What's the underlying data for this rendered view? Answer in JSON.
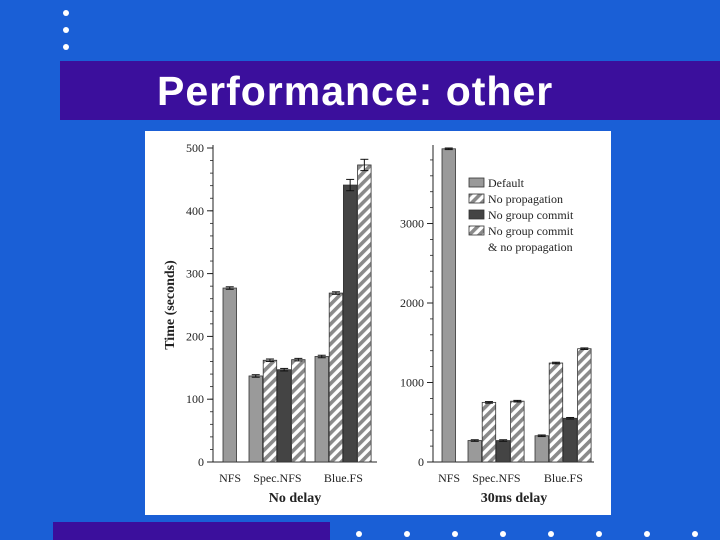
{
  "slide": {
    "title": "Performance: other",
    "colors": {
      "background": "#1a5fd6",
      "title_bar": "#3b0f9c",
      "title_text": "#ffffff"
    }
  },
  "chart_data": [
    {
      "type": "bar",
      "xlabel": "No delay",
      "ylabel": "Time (seconds)",
      "ylim": [
        0,
        500
      ],
      "yticks": [
        0,
        100,
        200,
        300,
        400,
        500
      ],
      "groups": [
        {
          "label": "NFS",
          "values": [
            277
          ]
        },
        {
          "label": "Spec.NFS",
          "values": [
            137,
            162,
            147,
            163
          ]
        },
        {
          "label": "Blue.FS",
          "values": [
            168,
            269,
            441,
            473
          ]
        }
      ],
      "error_bars": true
    },
    {
      "type": "bar",
      "xlabel": "30ms delay",
      "ylabel": "",
      "ylim": [
        0,
        3950
      ],
      "yticks": [
        0,
        1000,
        2000,
        3000
      ],
      "groups": [
        {
          "label": "NFS",
          "values": [
            3940
          ]
        },
        {
          "label": "Spec.NFS",
          "values": [
            270,
            750,
            270,
            765
          ]
        },
        {
          "label": "Blue.FS",
          "values": [
            330,
            1245,
            550,
            1425
          ]
        }
      ],
      "legend_position": "top-right",
      "legend": [
        {
          "name": "Default",
          "style": "gray"
        },
        {
          "name": "No propagation",
          "style": "hatched"
        },
        {
          "name": "No group commit",
          "style": "dark"
        },
        {
          "name": "No group commit",
          "style": "hatched"
        },
        {
          "name": "& no propagation",
          "style": "none"
        }
      ],
      "error_bars": true
    }
  ]
}
